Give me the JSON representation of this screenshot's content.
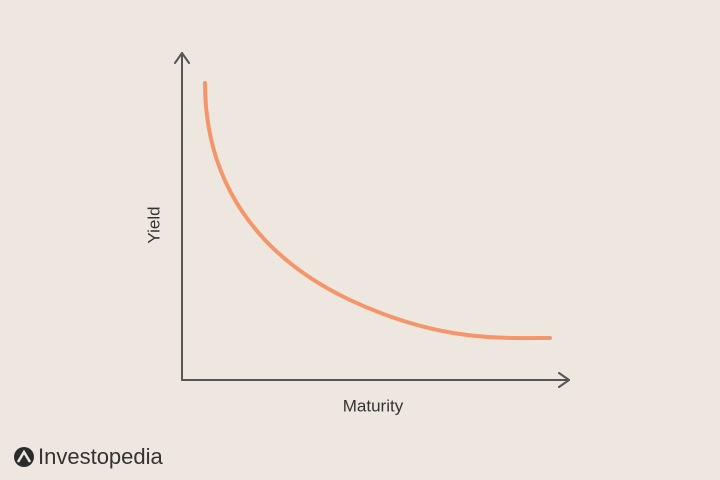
{
  "axes": {
    "x_label": "Maturity",
    "y_label": "Yield"
  },
  "brand": "Investopedia"
}
